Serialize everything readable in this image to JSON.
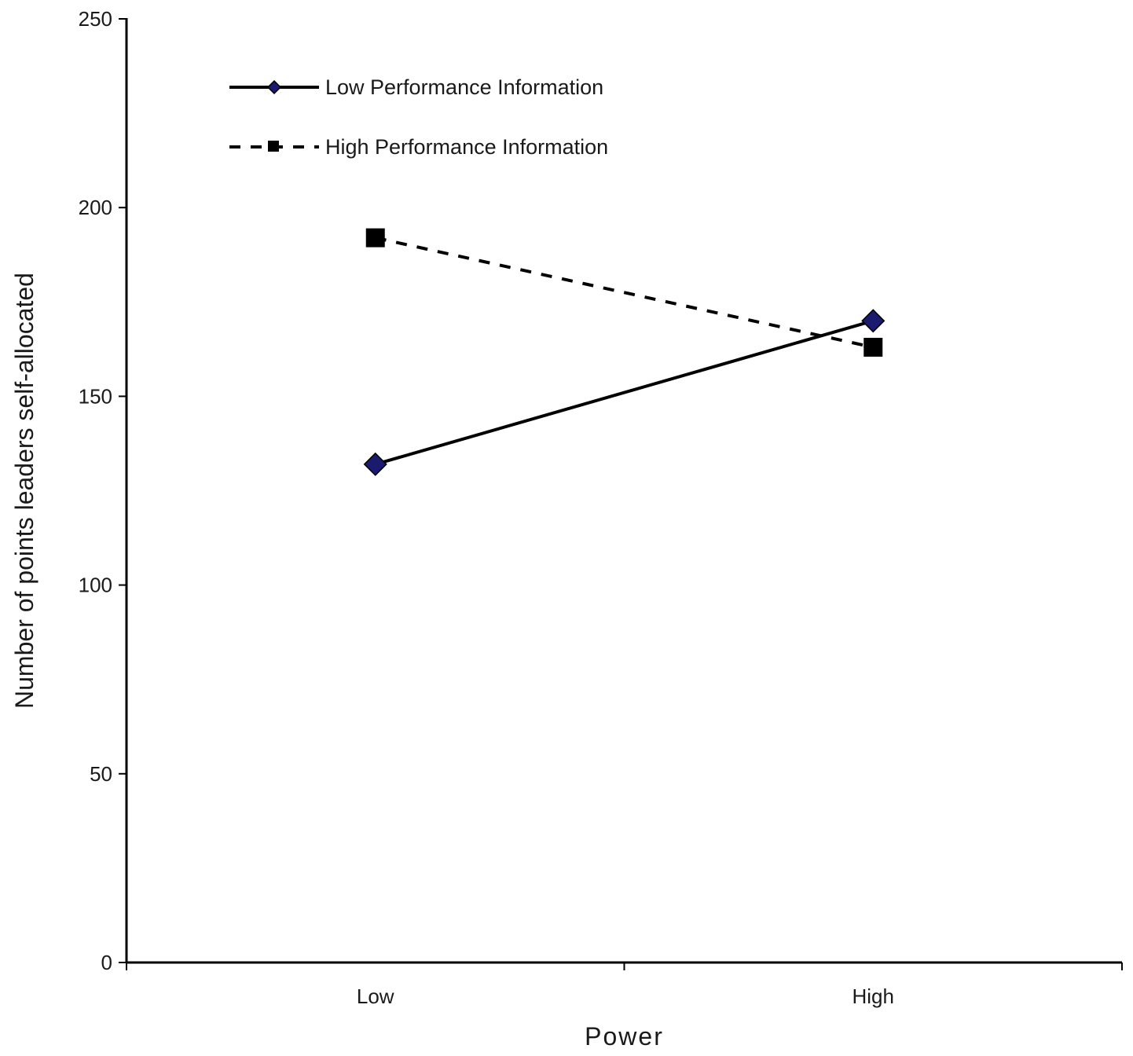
{
  "chart_data": {
    "type": "line",
    "title": "",
    "xlabel": "Power",
    "ylabel": "Number of points leaders self-allocated",
    "categories": [
      "Low",
      "High"
    ],
    "ylim": [
      0,
      250
    ],
    "yticks": [
      0,
      50,
      100,
      150,
      200,
      250
    ],
    "grid": false,
    "legend_position": "top-left",
    "series": [
      {
        "name": "Low Performance Information",
        "values": [
          132,
          170
        ],
        "line_style": "solid",
        "marker": "diamond",
        "line_color": "#000000",
        "marker_color": "#1a1a6e"
      },
      {
        "name": "High Performance Information",
        "values": [
          192,
          163
        ],
        "line_style": "dashed",
        "marker": "square",
        "line_color": "#000000",
        "marker_color": "#000000"
      }
    ]
  }
}
